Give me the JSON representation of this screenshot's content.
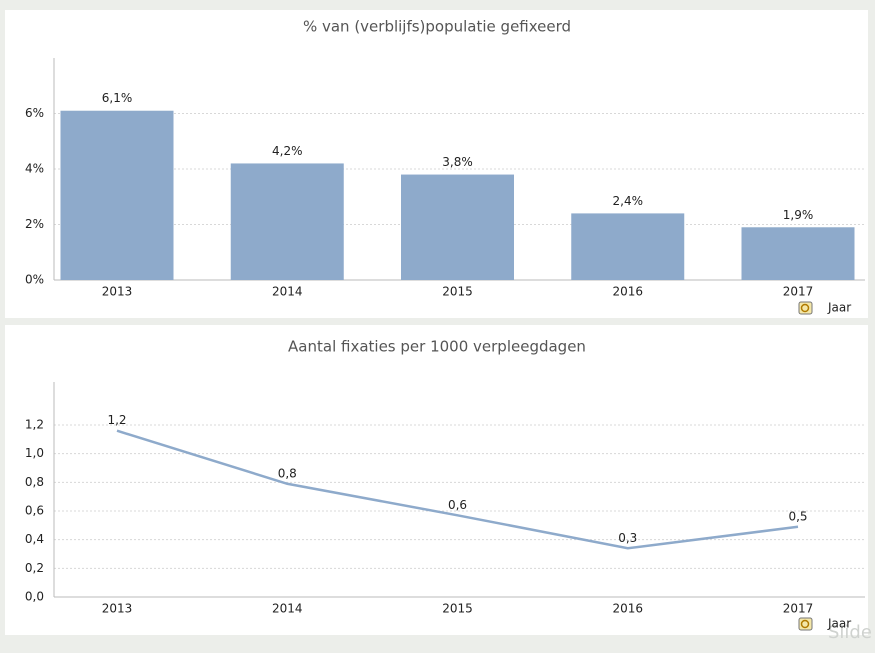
{
  "chart_data": [
    {
      "type": "bar",
      "title": "% van (verblijfs)populatie gefixeerd",
      "categories": [
        "2013",
        "2014",
        "2015",
        "2016",
        "2017"
      ],
      "values": [
        6.1,
        4.2,
        3.8,
        2.4,
        1.9
      ],
      "value_labels": [
        "6,1%",
        "4,2%",
        "3,8%",
        "2,4%",
        "1,9%"
      ],
      "color": "#8eaacb",
      "ylim": [
        0,
        8
      ],
      "yticks": [
        {
          "value": 0,
          "label": "0%"
        },
        {
          "value": 2,
          "label": "2%"
        },
        {
          "value": 4,
          "label": "4%"
        },
        {
          "value": 6,
          "label": "6%"
        }
      ],
      "grid": true,
      "x_label": "Jaar"
    },
    {
      "type": "line",
      "title": "Aantal fixaties per 1000 verpleegdagen",
      "categories": [
        "2013",
        "2014",
        "2015",
        "2016",
        "2017"
      ],
      "values": [
        1.16,
        0.79,
        0.57,
        0.34,
        0.49
      ],
      "value_labels": [
        "1,2",
        "0,8",
        "0,6",
        "0,3",
        "0,5"
      ],
      "color": "#8eaacb",
      "ylim": [
        0,
        1.5
      ],
      "yticks": [
        {
          "value": 0,
          "label": "0,0"
        },
        {
          "value": 0.2,
          "label": "0,2"
        },
        {
          "value": 0.4,
          "label": "0,4"
        },
        {
          "value": 0.6,
          "label": "0,6"
        },
        {
          "value": 0.8,
          "label": "0,8"
        },
        {
          "value": 1.0,
          "label": "1,0"
        },
        {
          "value": 1.2,
          "label": "1,2"
        }
      ],
      "grid": true,
      "x_label": "Jaar"
    }
  ],
  "watermark": "Slide"
}
